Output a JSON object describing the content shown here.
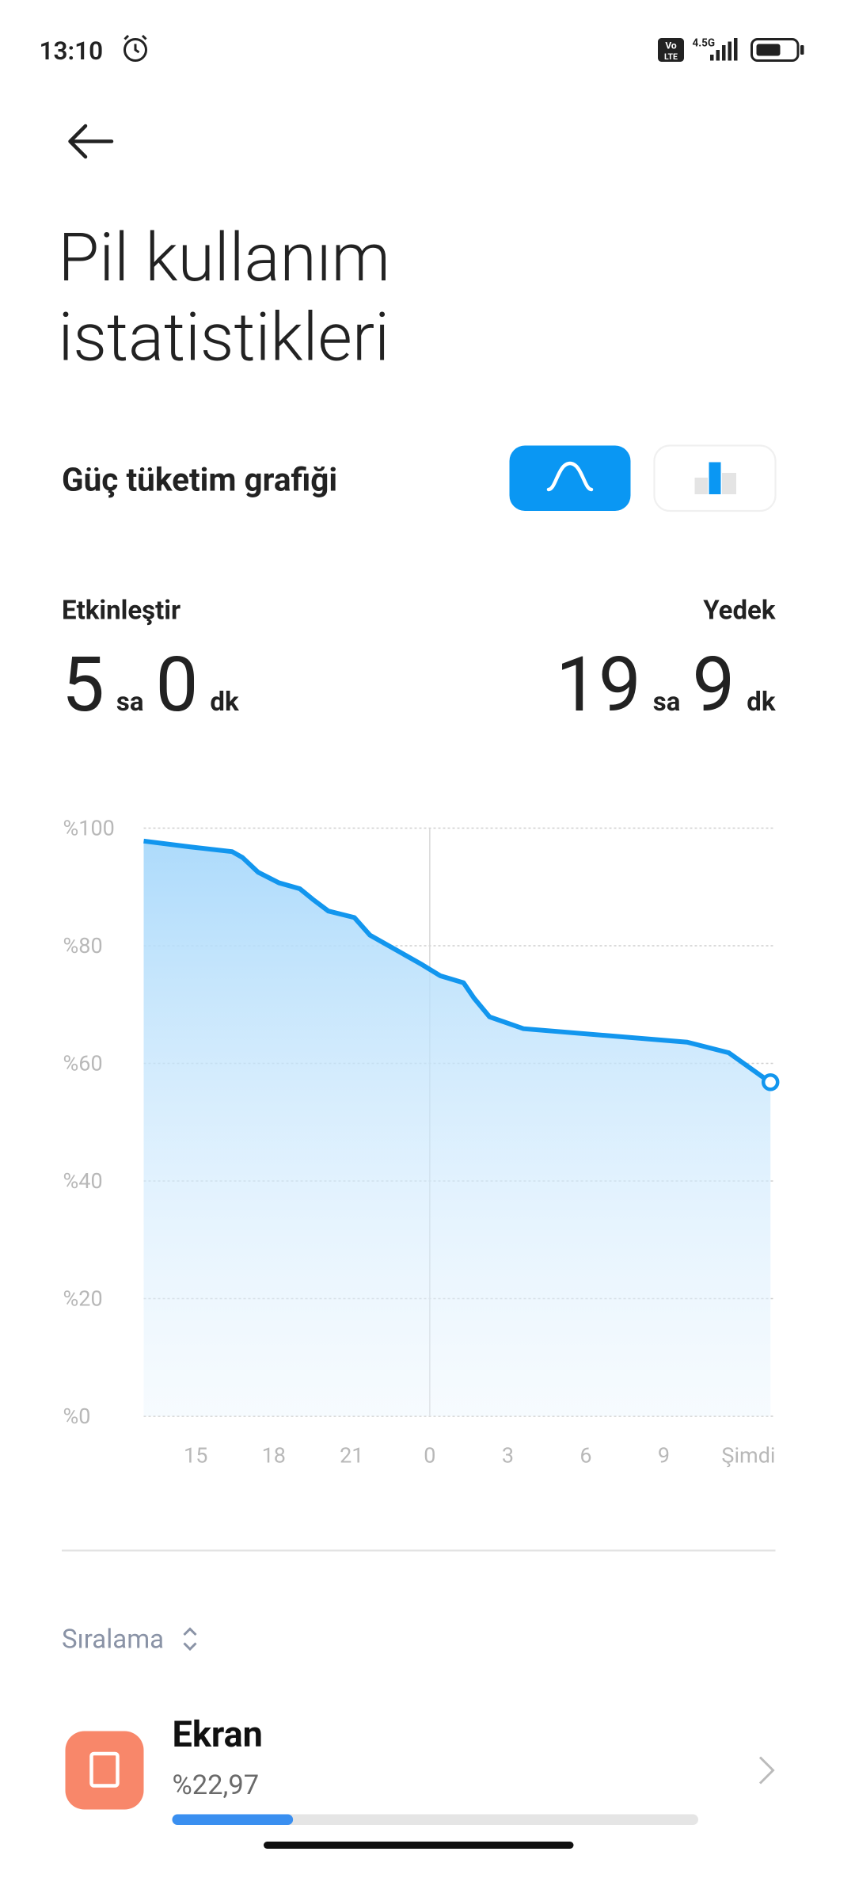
{
  "status_bar": {
    "time": "13:10",
    "volte": [
      "Vo",
      "LTE"
    ],
    "network": "4.5G"
  },
  "header": {
    "title_lines": [
      "Pil kullanım",
      "istatistikleri"
    ]
  },
  "chart_section": {
    "title": "Güç tüketim grafiği"
  },
  "stats": {
    "active": {
      "label": "Etkinleştir",
      "hours": "5",
      "hours_unit": "sa",
      "minutes": "0",
      "minutes_unit": "dk"
    },
    "standby": {
      "label": "Yedek",
      "hours": "19",
      "hours_unit": "sa",
      "minutes": "9",
      "minutes_unit": "dk"
    }
  },
  "chart_data": {
    "type": "area-line",
    "color": "#1296ee",
    "x": [
      13,
      14.8,
      16.4,
      16.8,
      17.4,
      18.2,
      19.0,
      19.5,
      20.1,
      21.1,
      21.7,
      22.9,
      23.7,
      24.4,
      25.3,
      25.7,
      26.3,
      27.6,
      33.9,
      35.5,
      36.7,
      37.1
    ],
    "values": [
      97.8,
      96.8,
      96,
      95,
      92.5,
      90.7,
      89.7,
      87.9,
      85.9,
      84.8,
      81.8,
      78.8,
      76.8,
      74.9,
      73.7,
      71.1,
      67.9,
      65.9,
      63.6,
      61.8,
      58,
      56.8
    ],
    "xlim": [
      13,
      37.2
    ],
    "xticks": [
      15,
      18,
      21,
      {
        "value": 24,
        "label": "0"
      },
      {
        "value": 27,
        "label": "3"
      },
      {
        "value": 30,
        "label": "6"
      },
      {
        "value": 33,
        "label": "9"
      },
      {
        "value": 37.1,
        "label": "Şimdi"
      }
    ],
    "ylim": [
      0,
      100
    ],
    "yticks": [
      {
        "value": 0,
        "label": "%0"
      },
      {
        "value": 20,
        "label": "%20"
      },
      {
        "value": 40,
        "label": "%40"
      },
      {
        "value": 60,
        "label": "%60"
      },
      {
        "value": 80,
        "label": "%80"
      },
      {
        "value": 100,
        "label": "%100"
      }
    ],
    "grid": true
  },
  "list": {
    "sort_label": "Sıralama",
    "items": [
      {
        "name": "Ekran",
        "value": 22.97,
        "value_label": "%22,97"
      }
    ]
  }
}
